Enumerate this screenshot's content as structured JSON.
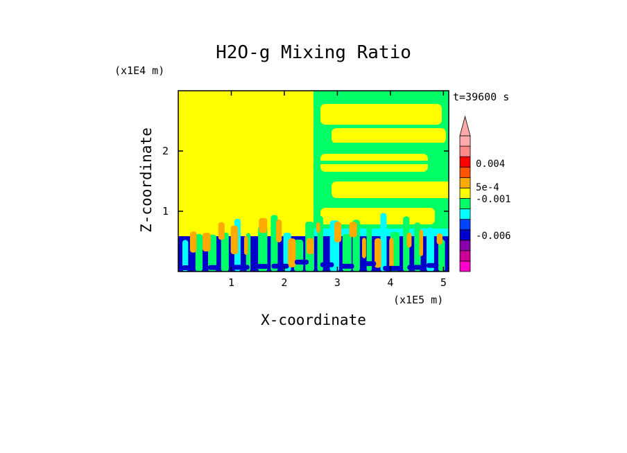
{
  "chart_data": {
    "type": "heatmap",
    "title": "H2O-g Mixing Ratio",
    "xlabel": "X-coordinate",
    "ylabel": "Z-coordinate",
    "x_unit": "(x1E5 m)",
    "y_unit": "(x1E4 m)",
    "time_label": "t=39600 s",
    "xlim": [
      0,
      5.1
    ],
    "ylim": [
      0,
      3.0
    ],
    "x_ticks": [
      "1",
      "2",
      "3",
      "4",
      "5"
    ],
    "x_tick_values": [
      1,
      2,
      3,
      4,
      5
    ],
    "y_ticks": [
      "1",
      "2"
    ],
    "y_tick_values": [
      1,
      2
    ],
    "colorbar": {
      "colors": [
        "#ff00cc",
        "#cc0099",
        "#8800aa",
        "#0000cc",
        "#0044ff",
        "#00ffff",
        "#00ff66",
        "#ffff00",
        "#ffaa00",
        "#ff5500",
        "#ff0000",
        "#ff8888",
        "#ffaaaa"
      ],
      "labels": [
        "0.004",
        "5e-4",
        "-0.001",
        "-0.006"
      ],
      "extend_top": true
    },
    "regions": {
      "upper_left": "#ffff00",
      "upper_right": "#ffff00",
      "layers_right": "#00ff66",
      "lower_band": "#0000cc",
      "plumes": "#ffaa00",
      "mid_right": "#00ffff"
    }
  }
}
